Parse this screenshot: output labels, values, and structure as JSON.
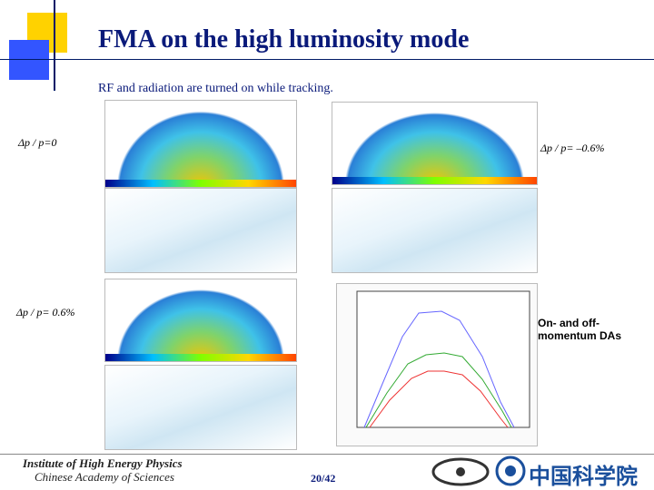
{
  "header": {
    "title": "FMA on the high luminosity mode",
    "subtitle": "RF and radiation are turned on while tracking."
  },
  "labels": {
    "zero": "Δp / p=0",
    "minus": "Δp / p= –0.6%",
    "plus": "Δp / p= 0.6%",
    "das": "On- and off-momentum DAs"
  },
  "footer": {
    "institute": "Institute of High Energy Physics",
    "academy": "Chinese Academy of Sciences",
    "page": "20/42",
    "logo": "中国科学院"
  }
}
